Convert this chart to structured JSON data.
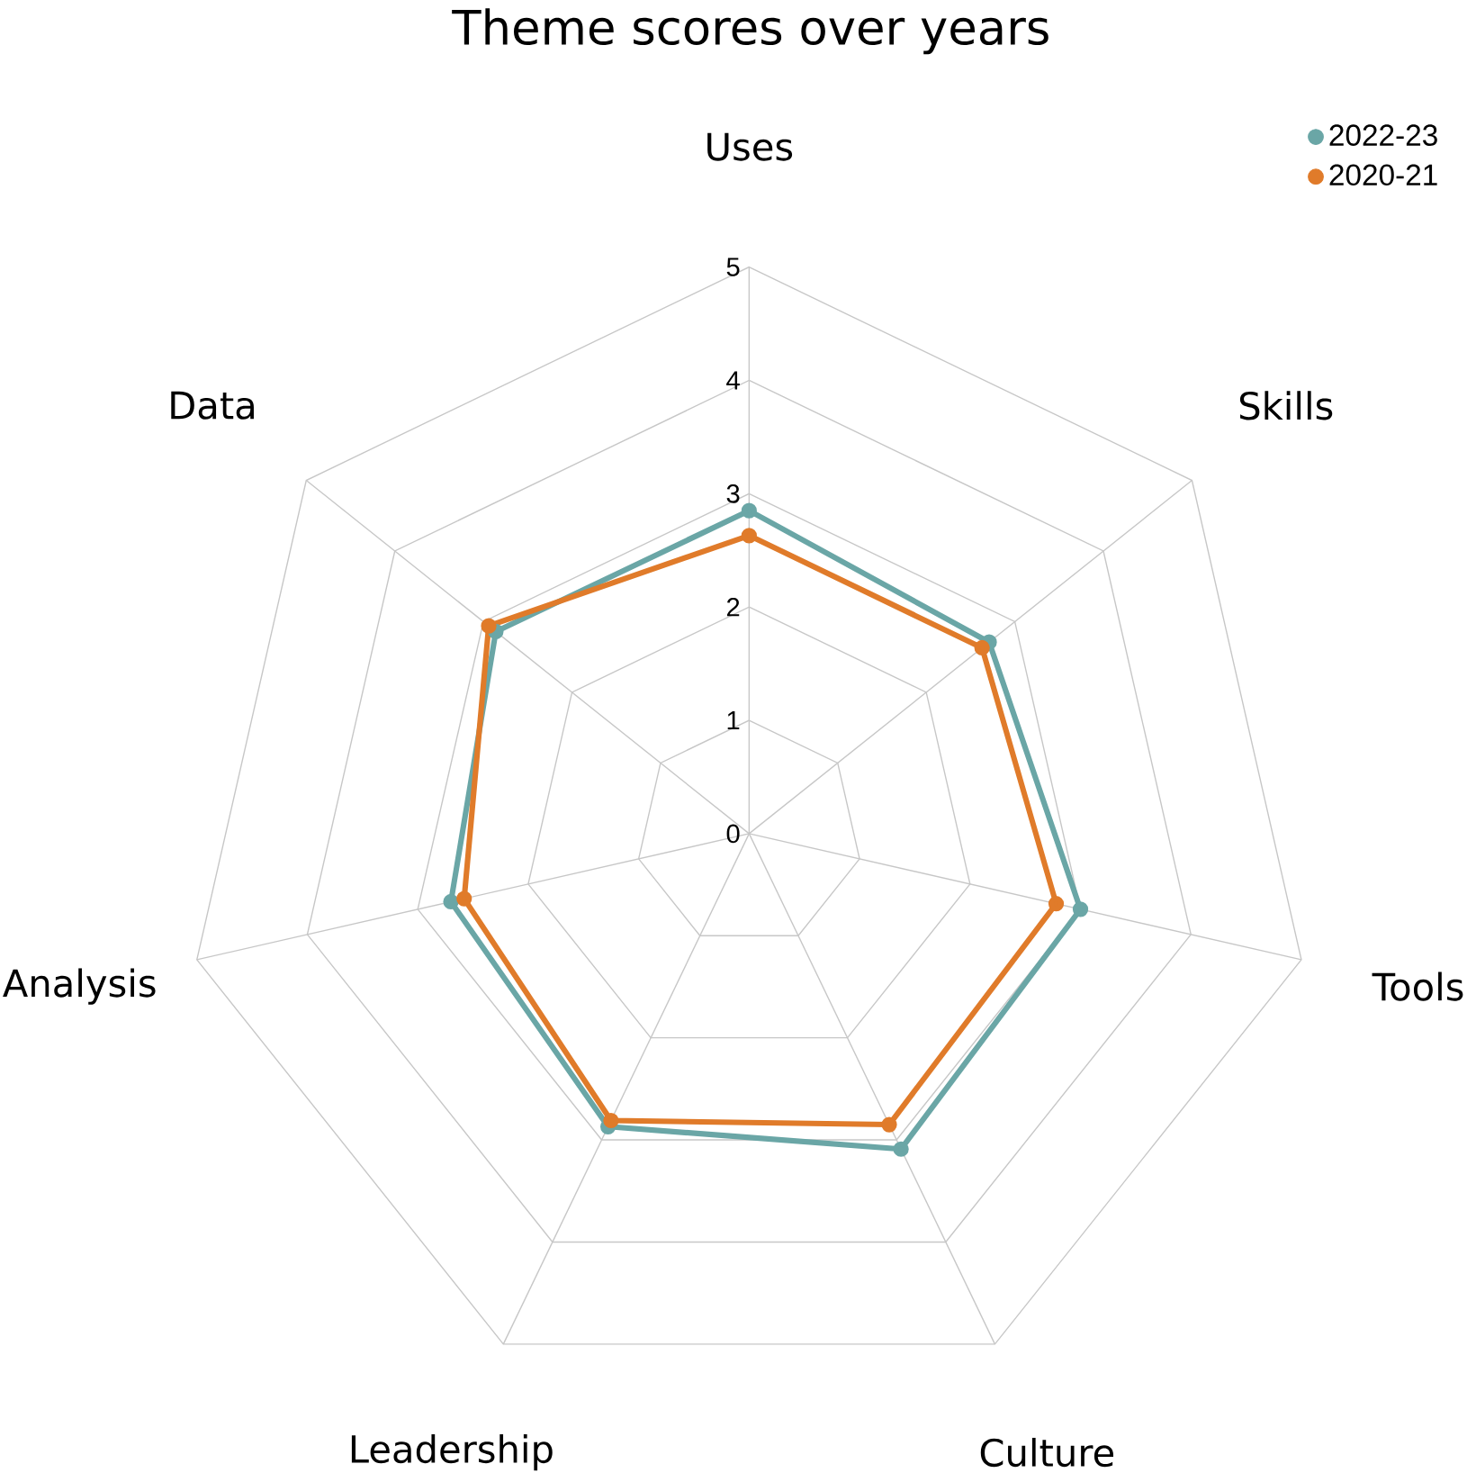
{
  "chart_data": {
    "type": "radar",
    "title": "Theme scores over years",
    "categories": [
      "Uses",
      "Skills",
      "Tools",
      "Culture",
      "Leadership",
      "Analysis",
      "Data"
    ],
    "series": [
      {
        "name": "2022-23",
        "color": "#6aa6a6",
        "values": [
          2.85,
          2.71,
          3.0,
          3.09,
          2.87,
          2.7,
          2.86
        ]
      },
      {
        "name": "2020-21",
        "color": "#e07b2a",
        "values": [
          2.63,
          2.63,
          2.78,
          2.85,
          2.81,
          2.58,
          2.94
        ]
      }
    ],
    "ylim": [
      0,
      5
    ],
    "yticks": [
      0,
      1,
      2,
      3,
      4,
      5
    ],
    "grid": true,
    "legend": "top right",
    "marker": "circle"
  }
}
